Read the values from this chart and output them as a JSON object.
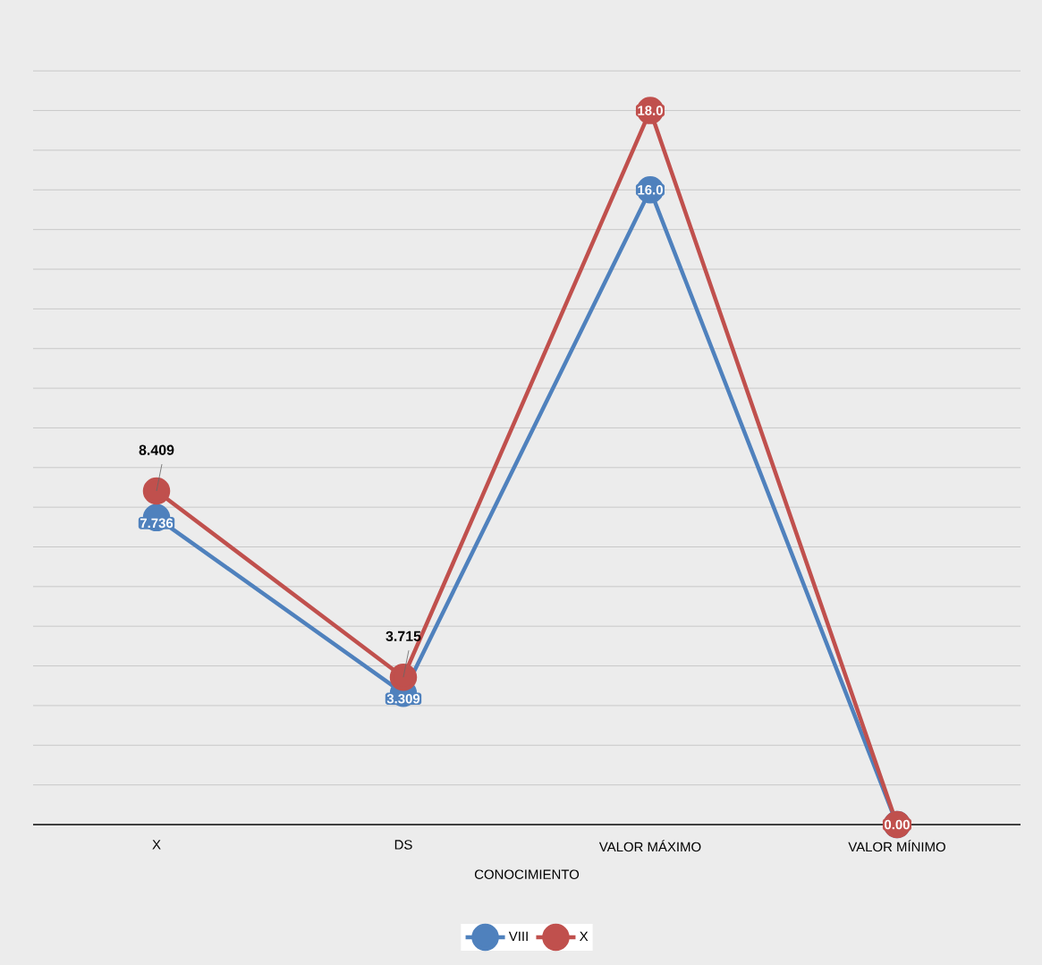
{
  "chart_data": {
    "type": "line",
    "xlabel": "CONOCIMIENTO",
    "categories": [
      "X",
      "DS",
      "VALOR MÁXIMO",
      "VALOR MÍNIMO"
    ],
    "tick_labels": "x",
    "grid": "y",
    "legend": "bottom",
    "marker": "circle",
    "line_style": "solid",
    "series": [
      {
        "name": "VIII",
        "color": "#4f81bd",
        "values": [
          7.736,
          3.309,
          16.0,
          0.0
        ],
        "value_labels": [
          "7.736",
          "3.309",
          "16.0",
          null
        ]
      },
      {
        "name": "X",
        "color": "#c0504d",
        "values": [
          8.409,
          3.715,
          18.0,
          0.0
        ],
        "value_labels": [
          "8.409",
          "3.715",
          "18.0",
          "0.00"
        ]
      }
    ]
  }
}
